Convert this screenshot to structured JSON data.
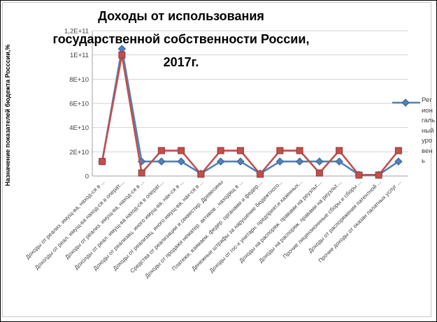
{
  "chart_data": {
    "type": "line",
    "title": "Доходы от использования государственной собственности России, 2017г.",
    "ylabel": "Назначение показателей бюдежта Росссии,%",
    "xlabel": "",
    "ylim": [
      0,
      120000000000
    ],
    "ytick_labels": [
      "0",
      "2E+10",
      "4E+10",
      "6E+10",
      "8E+10",
      "1E+11",
      "1,2E+11"
    ],
    "grid": true,
    "legend_position": "right",
    "categories": [
      "Доходы от реализ. имущ-ва, наход-ся в ...",
      "Дохолды от реал. имущ-ва наход-ся в операт....",
      "Доходы от реализ. имущ-ва, наход-ся в ...",
      "Дохолды от реал. имущ-ва наход-ся в операт....",
      "Доходы от  реализац. иного имущ-ва, нах-ся в ...",
      "Доходы от  реализац. иного имущ-ва, нах-ся в ...",
      "Средства от реализации и секвестир. Древесины",
      "Доходы от продажи нематер. активов , находящ в ...",
      "Платежи, взимаем. федер. органами и  федер....",
      "Денежные штрафы за нарушение бюдежтного...",
      "Доходы от гос-х унитарн. предприят.и казенных...",
      "Доходы на распоряж. правами на реузльт....",
      "Доходы на распоряж. правами на реузльт....",
      "Прочие лицензионнные сборы и сборы ...",
      "Доходы от распоряжения патентной ...",
      "Прочие доходы от оказан палатных услуг ..."
    ],
    "series": [
      {
        "name": "Регионгальный уровень",
        "marker": "diamond",
        "color": "#4F81BD",
        "marker_edge": "#376092",
        "values": [
          12000000000,
          105000000000,
          12000000000,
          12000000000,
          12000000000,
          2000000000,
          12000000000,
          12000000000,
          2000000000,
          12000000000,
          12000000000,
          12000000000,
          12000000000,
          1000000000,
          1000000000,
          12000000000
        ]
      },
      {
        "name": "",
        "marker": "square",
        "color": "#C0504D",
        "marker_edge": "#943634",
        "values": [
          12000000000,
          100000000000,
          2500000000,
          21000000000,
          21000000000,
          1500000000,
          21000000000,
          21000000000,
          1500000000,
          21000000000,
          21000000000,
          2500000000,
          21000000000,
          800000000,
          800000000,
          21000000000
        ]
      }
    ],
    "legend": {
      "label": "Регионгальный уровень",
      "lines": [
        "Рег",
        "ион",
        "галь",
        "ный",
        "уро",
        "вен",
        "ь"
      ]
    }
  }
}
